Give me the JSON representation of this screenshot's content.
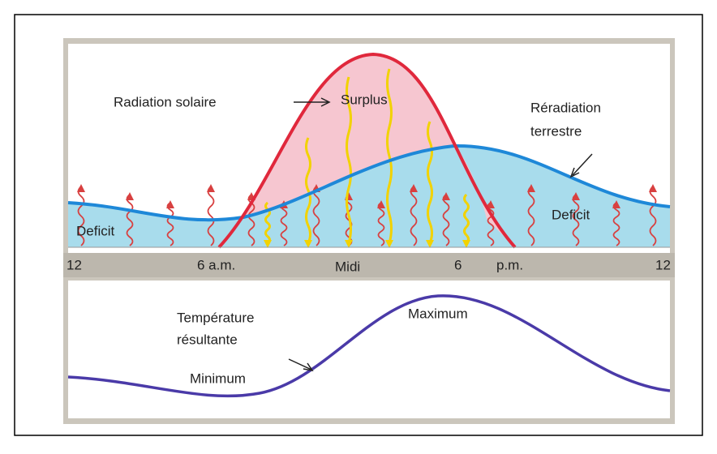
{
  "top_panel": {
    "solar_label": "Radiation solaire",
    "surplus_label": "Surplus",
    "terrestrial_label": [
      "Réradiation",
      "terrestre"
    ],
    "deficit_left": "Deficit",
    "deficit_right": "Deficit"
  },
  "time_axis": [
    "12",
    "6 a.m.",
    "Midi",
    "6",
    "p.m.",
    "12"
  ],
  "bottom_panel": {
    "temperature_label": [
      "Température",
      "résultante"
    ],
    "minimum_label": "Minimum",
    "maximum_label": "Maximum"
  }
}
